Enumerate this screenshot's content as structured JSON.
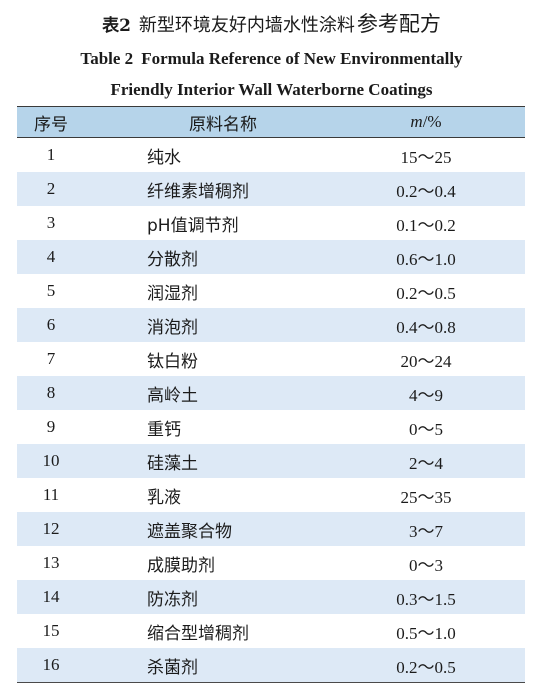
{
  "caption": {
    "zh_label": "表2",
    "zh_title": "新型环境友好内墙水性涂料",
    "zh_ref": "参考配方",
    "en_label": "Table 2",
    "en_title_line1": "Formula Reference of New Environmentally",
    "en_title_line2": "Friendly Interior Wall Waterborne Coatings"
  },
  "table": {
    "headers": {
      "no": "序号",
      "name": "原料名称",
      "mass_symbol": "m",
      "mass_unit": "/%"
    },
    "rows": [
      {
        "no": "1",
        "name": "纯水",
        "mass": "15～25"
      },
      {
        "no": "2",
        "name": "纤维素增稠剂",
        "mass": "0.2～0.4"
      },
      {
        "no": "3",
        "name": "pH值调节剂",
        "mass": "0.1～0.2"
      },
      {
        "no": "4",
        "name": "分散剂",
        "mass": "0.6～1.0"
      },
      {
        "no": "5",
        "name": "润湿剂",
        "mass": "0.2～0.5"
      },
      {
        "no": "6",
        "name": "消泡剂",
        "mass": "0.4～0.8"
      },
      {
        "no": "7",
        "name": "钛白粉",
        "mass": "20～24"
      },
      {
        "no": "8",
        "name": "高岭土",
        "mass": "4～9"
      },
      {
        "no": "9",
        "name": "重钙",
        "mass": "0～5"
      },
      {
        "no": "10",
        "name": "硅藻土",
        "mass": "2～4"
      },
      {
        "no": "11",
        "name": "乳液",
        "mass": "25～35"
      },
      {
        "no": "12",
        "name": "遮盖聚合物",
        "mass": "3～7"
      },
      {
        "no": "13",
        "name": "成膜助剂",
        "mass": "0～3"
      },
      {
        "no": "14",
        "name": "防冻剂",
        "mass": "0.3～1.5"
      },
      {
        "no": "15",
        "name": "缩合型增稠剂",
        "mass": "0.5～1.0"
      },
      {
        "no": "16",
        "name": "杀菌剂",
        "mass": "0.2～0.5"
      }
    ]
  },
  "colors": {
    "header_bg": "#b6d4ea",
    "stripe_bg": "#dde9f6"
  }
}
